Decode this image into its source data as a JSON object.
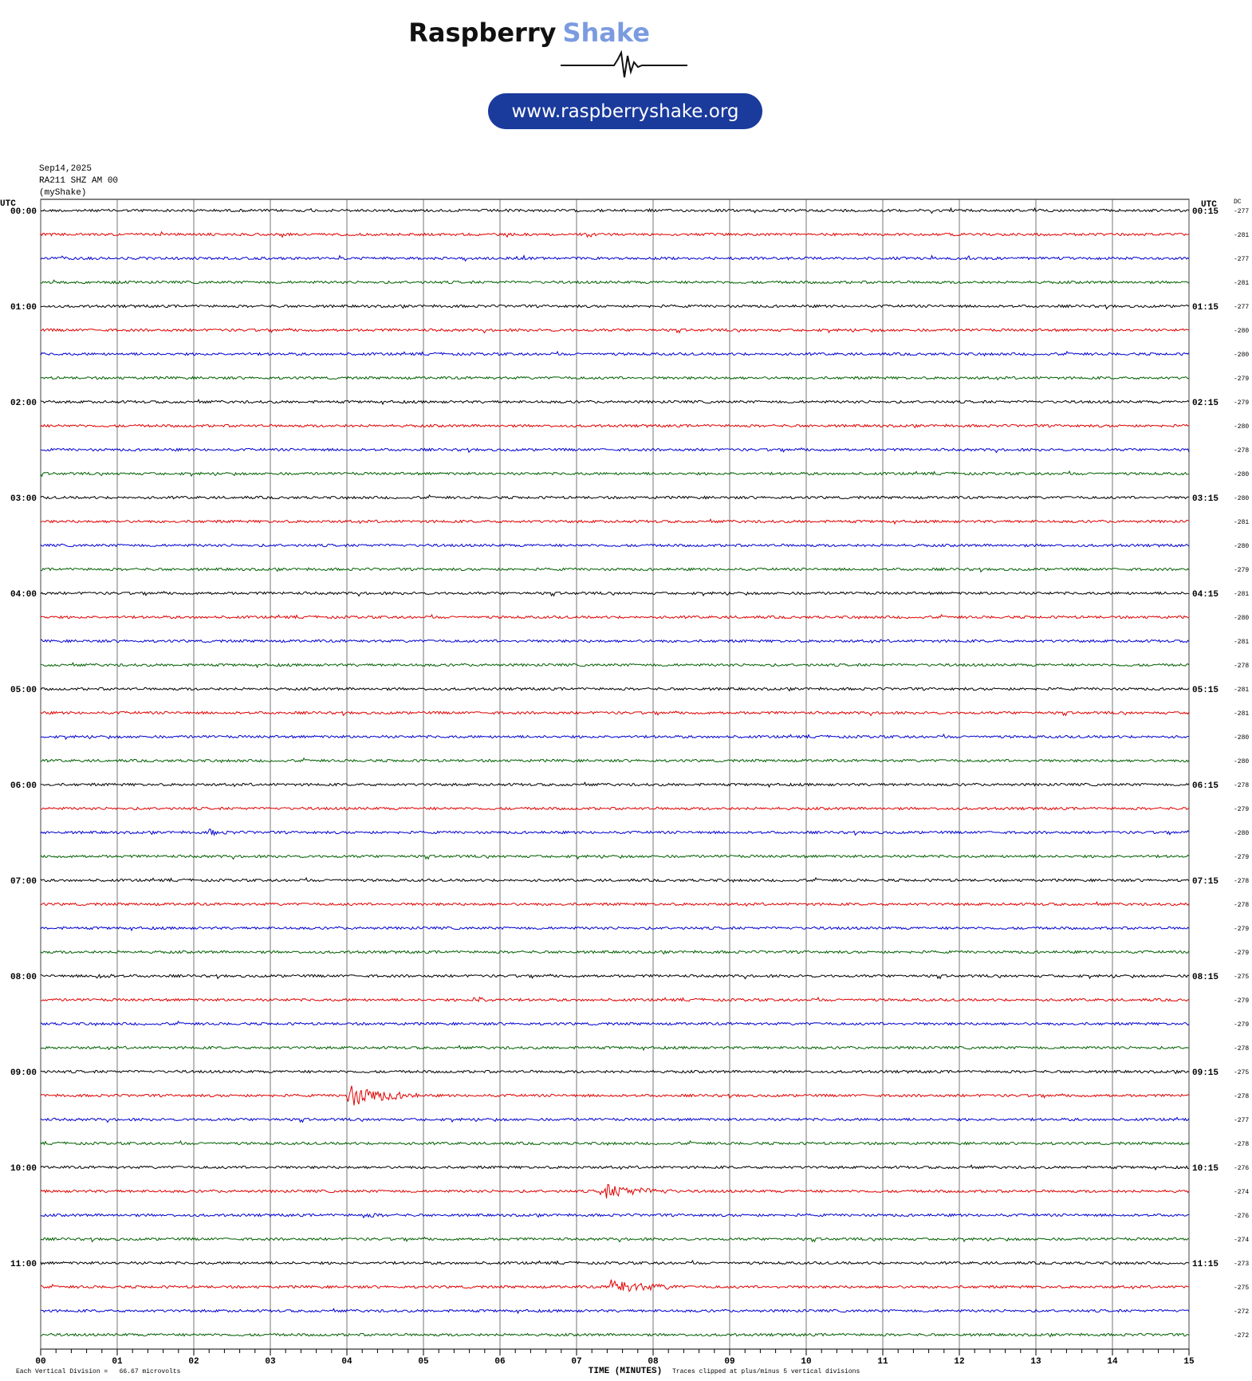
{
  "header": {
    "brand_first": "Raspberry",
    "brand_second": "Shake",
    "url": "www.raspberryshake.org",
    "date": "Sep14,2025",
    "station": "RA211 SHZ AM 00",
    "network": "(myShake)"
  },
  "left_axis": {
    "title": "UTC",
    "labels": [
      "00:00",
      "01:00",
      "02:00",
      "03:00",
      "04:00",
      "05:00",
      "06:00",
      "07:00",
      "08:00",
      "09:00",
      "10:00",
      "11:00"
    ]
  },
  "right_axis": {
    "title": "UTC",
    "labels": [
      "00:15",
      "01:15",
      "02:15",
      "03:15",
      "04:15",
      "05:15",
      "06:15",
      "07:15",
      "08:15",
      "09:15",
      "10:15",
      "11:15"
    ]
  },
  "dc": {
    "title": "DC",
    "values": [
      "-277",
      "-281",
      "-277",
      "-281",
      "-277",
      "-280",
      "-280",
      "-279",
      "-279",
      "-280",
      "-278",
      "-280",
      "-280",
      "-281",
      "-280",
      "-279",
      "-281",
      "-280",
      "-281",
      "-278",
      "-281",
      "-281",
      "-280",
      "-280",
      "-278",
      "-279",
      "-280",
      "-279",
      "-278",
      "-278",
      "-279",
      "-279",
      "-275",
      "-279",
      "-279",
      "-278",
      "-275",
      "-278",
      "-277",
      "-278",
      "-276",
      "-274",
      "-276",
      "-274",
      "-273",
      "-275",
      "-272",
      "-272"
    ]
  },
  "x_axis": {
    "label": "TIME (MINUTES)",
    "ticks": [
      "00",
      "01",
      "02",
      "03",
      "04",
      "05",
      "06",
      "07",
      "08",
      "09",
      "10",
      "11",
      "12",
      "13",
      "14",
      "15"
    ]
  },
  "footer": {
    "division_note": "Each Vertical Division =   66.67 microvolts",
    "clip_note": "Traces clipped at plus/minus 5 vertical divisions"
  }
}
